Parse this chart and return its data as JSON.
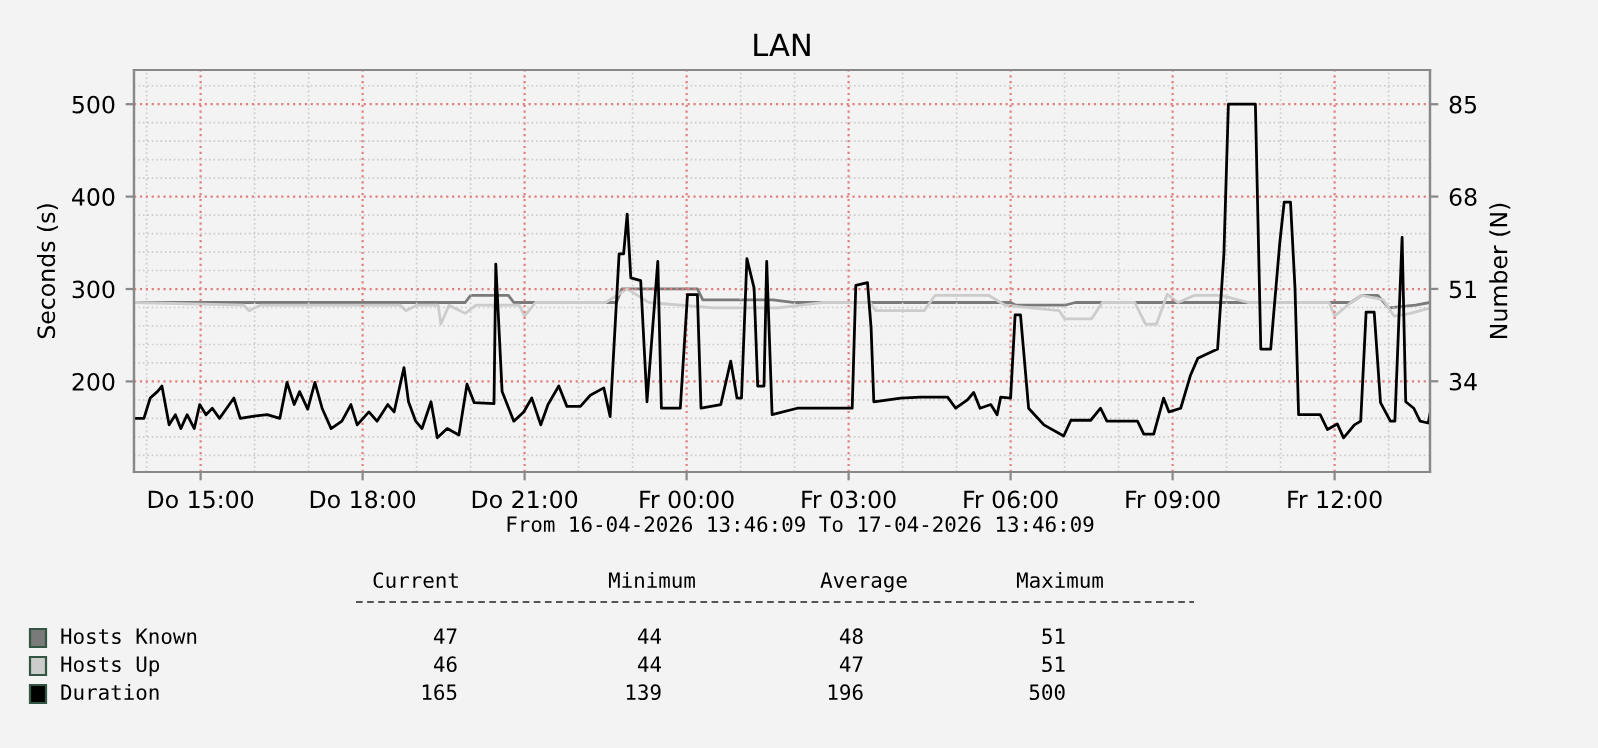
{
  "chart_data": {
    "type": "line",
    "title": "LAN",
    "ylabel": "Seconds (s)",
    "y2label": "Number (N)",
    "xlim": [
      "2026-04-16T13:46",
      "2026-04-17T13:46"
    ],
    "xticks": [
      {
        "value": "2026-04-16T15:00",
        "label": "Do 15:00"
      },
      {
        "value": "2026-04-16T18:00",
        "label": "Do 18:00"
      },
      {
        "value": "2026-04-16T21:00",
        "label": "Do 21:00"
      },
      {
        "value": "2026-04-17T00:00",
        "label": "Fr 00:00"
      },
      {
        "value": "2026-04-17T03:00",
        "label": "Fr 03:00"
      },
      {
        "value": "2026-04-17T06:00",
        "label": "Fr 06:00"
      },
      {
        "value": "2026-04-17T09:00",
        "label": "Fr 09:00"
      },
      {
        "value": "2026-04-17T12:00",
        "label": "Fr 12:00"
      }
    ],
    "ylim": [
      102,
      537
    ],
    "yticks": [
      200,
      300,
      400,
      500
    ],
    "y2lim": [
      17.3,
      91.3
    ],
    "y2ticks": [
      34,
      51,
      68,
      85
    ],
    "grid": true,
    "legend": "bottom left",
    "marker": "none",
    "line_style": "solid",
    "annotations": [
      "From 16-04-2026 13:46:09 To 17-04-2026 13:46:09",
      "Current",
      "Minimum",
      "Average",
      "Maximum",
      "47",
      "44",
      "48",
      "51",
      "46",
      "44",
      "47",
      "51",
      "165",
      "139",
      "196",
      "500"
    ],
    "series": [
      {
        "name": "Hosts Known",
        "color": "#7a7a7a",
        "axis": "y2",
        "x": [
          "2026-04-16T13:46",
          "2026-04-16T19:54",
          "2026-04-16T20:00",
          "2026-04-16T20:42",
          "2026-04-16T20:48",
          "2026-04-16T22:42",
          "2026-04-16T22:48",
          "2026-04-17T00:12",
          "2026-04-17T00:18",
          "2026-04-17T01:36",
          "2026-04-17T02:00",
          "2026-04-17T06:00",
          "2026-04-17T06:06",
          "2026-04-17T07:00",
          "2026-04-17T07:12",
          "2026-04-17T09:00",
          "2026-04-17T12:18",
          "2026-04-17T12:30",
          "2026-04-17T12:48",
          "2026-04-17T13:00",
          "2026-04-17T13:30",
          "2026-04-17T13:46"
        ],
        "values": [
          48.5,
          48.5,
          49.8,
          49.8,
          48.5,
          48.5,
          51,
          51,
          49,
          49,
          48.5,
          48.5,
          48,
          48,
          48.5,
          48.5,
          48.5,
          49.8,
          49.8,
          47.5,
          48,
          48.5
        ]
      },
      {
        "name": "Hosts Up",
        "color": "#cccccc",
        "axis": "y2",
        "x": [
          "2026-04-16T13:46",
          "2026-04-16T15:48",
          "2026-04-16T15:54",
          "2026-04-16T16:06",
          "2026-04-16T18:42",
          "2026-04-16T18:48",
          "2026-04-16T19:00",
          "2026-04-16T19:24",
          "2026-04-16T19:27",
          "2026-04-16T19:36",
          "2026-04-16T19:54",
          "2026-04-16T20:06",
          "2026-04-16T20:54",
          "2026-04-16T21:00",
          "2026-04-16T21:12",
          "2026-04-16T22:30",
          "2026-04-16T22:54",
          "2026-04-16T23:18",
          "2026-04-17T00:30",
          "2026-04-17T01:42",
          "2026-04-17T02:30",
          "2026-04-17T03:24",
          "2026-04-17T03:30",
          "2026-04-17T04:24",
          "2026-04-17T04:36",
          "2026-04-17T05:36",
          "2026-04-17T05:54",
          "2026-04-17T06:54",
          "2026-04-17T07:00",
          "2026-04-17T07:30",
          "2026-04-17T07:42",
          "2026-04-17T08:18",
          "2026-04-17T08:30",
          "2026-04-17T08:42",
          "2026-04-17T08:54",
          "2026-04-17T09:06",
          "2026-04-17T09:24",
          "2026-04-17T09:54",
          "2026-04-17T10:24",
          "2026-04-17T11:54",
          "2026-04-17T12:00",
          "2026-04-17T12:18",
          "2026-04-17T12:30",
          "2026-04-17T12:54",
          "2026-04-17T13:06",
          "2026-04-17T13:24",
          "2026-04-17T13:46"
        ],
        "values": [
          48.5,
          48,
          47,
          48,
          48,
          47,
          48,
          48,
          44.5,
          48,
          46.5,
          48,
          48,
          46,
          48.5,
          48.5,
          51,
          48.5,
          47.5,
          47.5,
          48.5,
          48.5,
          47,
          47,
          49.8,
          49.8,
          48,
          47,
          45.5,
          45.5,
          48.5,
          48.5,
          44.5,
          44.5,
          50,
          48.5,
          49.8,
          49.8,
          48.5,
          48.5,
          46,
          48.5,
          49.8,
          49,
          46,
          46.5,
          47.5
        ]
      },
      {
        "name": "Duration",
        "color": "#000000",
        "x": [
          "2026-04-16T13:46",
          "2026-04-16T13:57",
          "2026-04-16T14:04",
          "2026-04-16T14:12",
          "2026-04-16T14:17",
          "2026-04-16T14:25",
          "2026-04-16T14:32",
          "2026-04-16T14:38",
          "2026-04-16T14:45",
          "2026-04-16T14:53",
          "2026-04-16T14:59",
          "2026-04-16T15:06",
          "2026-04-16T15:13",
          "2026-04-16T15:21",
          "2026-04-16T15:29",
          "2026-04-16T15:37",
          "2026-04-16T15:44",
          "2026-04-16T15:56",
          "2026-04-16T16:14",
          "2026-04-16T16:28",
          "2026-04-16T16:36",
          "2026-04-16T16:44",
          "2026-04-16T16:50",
          "2026-04-16T16:59",
          "2026-04-16T17:07",
          "2026-04-16T17:15",
          "2026-04-16T17:25",
          "2026-04-16T17:37",
          "2026-04-16T17:47",
          "2026-04-16T17:54",
          "2026-04-16T18:07",
          "2026-04-16T18:16",
          "2026-04-16T18:28",
          "2026-04-16T18:35",
          "2026-04-16T18:46",
          "2026-04-16T18:51",
          "2026-04-16T18:59",
          "2026-04-16T19:06",
          "2026-04-16T19:16",
          "2026-04-16T19:23",
          "2026-04-16T19:34",
          "2026-04-16T19:47",
          "2026-04-16T19:56",
          "2026-04-16T20:04",
          "2026-04-16T20:26",
          "2026-04-16T20:28",
          "2026-04-16T20:35",
          "2026-04-16T20:48",
          "2026-04-16T20:59",
          "2026-04-16T21:08",
          "2026-04-16T21:18",
          "2026-04-16T21:26",
          "2026-04-16T21:38",
          "2026-04-16T21:47",
          "2026-04-16T22:02",
          "2026-04-16T22:13",
          "2026-04-16T22:28",
          "2026-04-16T22:35",
          "2026-04-16T22:45",
          "2026-04-16T22:50",
          "2026-04-16T22:54",
          "2026-04-16T22:58",
          "2026-04-16T23:09",
          "2026-04-16T23:16",
          "2026-04-16T23:28",
          "2026-04-16T23:32",
          "2026-04-16T23:53",
          "2026-04-17T00:01",
          "2026-04-17T00:12",
          "2026-04-17T00:16",
          "2026-04-17T00:38",
          "2026-04-17T00:49",
          "2026-04-17T00:56",
          "2026-04-17T01:01",
          "2026-04-17T01:07",
          "2026-04-17T01:15",
          "2026-04-17T01:19",
          "2026-04-17T01:26",
          "2026-04-17T01:29",
          "2026-04-17T01:35",
          "2026-04-17T02:03",
          "2026-04-17T03:04",
          "2026-04-17T03:08",
          "2026-04-17T03:21",
          "2026-04-17T03:25",
          "2026-04-17T03:28",
          "2026-04-17T03:58",
          "2026-04-17T04:20",
          "2026-04-17T04:50",
          "2026-04-17T04:59",
          "2026-04-17T05:12",
          "2026-04-17T05:19",
          "2026-04-17T05:26",
          "2026-04-17T05:38",
          "2026-04-17T05:45",
          "2026-04-17T05:49",
          "2026-04-17T06:00",
          "2026-04-17T06:05",
          "2026-04-17T06:11",
          "2026-04-17T06:20",
          "2026-04-17T06:37",
          "2026-04-17T06:59",
          "2026-04-17T07:07",
          "2026-04-17T07:29",
          "2026-04-17T07:40",
          "2026-04-17T07:47",
          "2026-04-17T08:21",
          "2026-04-17T08:28",
          "2026-04-17T08:39",
          "2026-04-17T08:50",
          "2026-04-17T08:56",
          "2026-04-17T09:09",
          "2026-04-17T09:20",
          "2026-04-17T09:28",
          "2026-04-17T09:50",
          "2026-04-17T09:57",
          "2026-04-17T10:02",
          "2026-04-17T10:32",
          "2026-04-17T10:38",
          "2026-04-17T10:49",
          "2026-04-17T10:53",
          "2026-04-17T10:59",
          "2026-04-17T11:04",
          "2026-04-17T11:11",
          "2026-04-17T11:16",
          "2026-04-17T11:20",
          "2026-04-17T11:44",
          "2026-04-17T11:52",
          "2026-04-17T12:03",
          "2026-04-17T12:10",
          "2026-04-17T12:22",
          "2026-04-17T12:29",
          "2026-04-17T12:35",
          "2026-04-17T12:44",
          "2026-04-17T12:51",
          "2026-04-17T13:02",
          "2026-04-17T13:07",
          "2026-04-17T13:15",
          "2026-04-17T13:19",
          "2026-04-17T13:28",
          "2026-04-17T13:35",
          "2026-04-17T13:44",
          "2026-04-17T13:46"
        ],
        "values": [
          160,
          160,
          182,
          189,
          195,
          153,
          164,
          149,
          164,
          149,
          175,
          164,
          171,
          160,
          171,
          182,
          160,
          162,
          164,
          160,
          199,
          175,
          189,
          170,
          199,
          171,
          149,
          157,
          175,
          153,
          167,
          157,
          175,
          167,
          215,
          178,
          157,
          149,
          178,
          139,
          149,
          142,
          197,
          177,
          176,
          327,
          189,
          157,
          167,
          182,
          153,
          175,
          195,
          173,
          173,
          185,
          193,
          162,
          338,
          338,
          381,
          312,
          309,
          178,
          330,
          171,
          171,
          294,
          294,
          171,
          175,
          222,
          182,
          182,
          333,
          301,
          195,
          195,
          330,
          164,
          171,
          171,
          304,
          307,
          258,
          178,
          182,
          183,
          183,
          171,
          180,
          188,
          171,
          175,
          164,
          183,
          182,
          272,
          272,
          171,
          153,
          141,
          158,
          158,
          171,
          157,
          157,
          143,
          143,
          182,
          167,
          171,
          207,
          225,
          235,
          338,
          500,
          500,
          235,
          235,
          281,
          349,
          394,
          394,
          301,
          164,
          164,
          148,
          154,
          139,
          153,
          157,
          275,
          275,
          177,
          157,
          157,
          356,
          178,
          171,
          157,
          155,
          165
        ]
      }
    ]
  }
}
